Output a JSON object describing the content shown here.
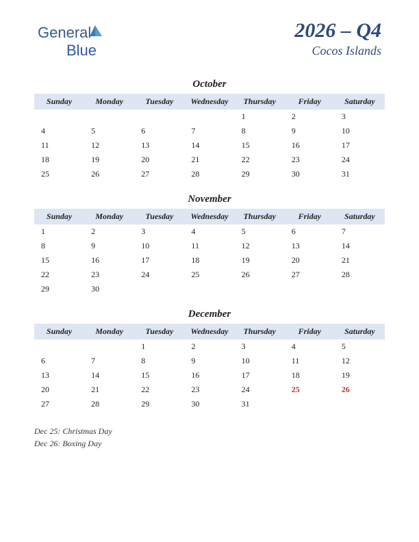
{
  "logo": {
    "part1": "General",
    "part2": "Blue"
  },
  "header": {
    "quarter": "2026 – Q4",
    "region": "Cocos Islands"
  },
  "colors": {
    "header_bg": "#dde6f2",
    "title_color": "#2d4a7a",
    "holiday_color": "#c03030",
    "text_color": "#222222"
  },
  "day_headers": [
    "Sunday",
    "Monday",
    "Tuesday",
    "Wednesday",
    "Thursday",
    "Friday",
    "Saturday"
  ],
  "months": [
    {
      "name": "October",
      "weeks": [
        [
          "",
          "",
          "",
          "",
          "1",
          "2",
          "3"
        ],
        [
          "4",
          "5",
          "6",
          "7",
          "8",
          "9",
          "10"
        ],
        [
          "11",
          "12",
          "13",
          "14",
          "15",
          "16",
          "17"
        ],
        [
          "18",
          "19",
          "20",
          "21",
          "22",
          "23",
          "24"
        ],
        [
          "25",
          "26",
          "27",
          "28",
          "29",
          "30",
          "31"
        ]
      ],
      "holidays": []
    },
    {
      "name": "November",
      "weeks": [
        [
          "1",
          "2",
          "3",
          "4",
          "5",
          "6",
          "7"
        ],
        [
          "8",
          "9",
          "10",
          "11",
          "12",
          "13",
          "14"
        ],
        [
          "15",
          "16",
          "17",
          "18",
          "19",
          "20",
          "21"
        ],
        [
          "22",
          "23",
          "24",
          "25",
          "26",
          "27",
          "28"
        ],
        [
          "29",
          "30",
          "",
          "",
          "",
          "",
          ""
        ]
      ],
      "holidays": []
    },
    {
      "name": "December",
      "weeks": [
        [
          "",
          "",
          "1",
          "2",
          "3",
          "4",
          "5"
        ],
        [
          "6",
          "7",
          "8",
          "9",
          "10",
          "11",
          "12"
        ],
        [
          "13",
          "14",
          "15",
          "16",
          "17",
          "18",
          "19"
        ],
        [
          "20",
          "21",
          "22",
          "23",
          "24",
          "25",
          "26"
        ],
        [
          "27",
          "28",
          "29",
          "30",
          "31",
          "",
          ""
        ]
      ],
      "holidays": [
        "25",
        "26"
      ]
    }
  ],
  "holiday_notes": [
    "Dec 25: Christmas Day",
    "Dec 26: Boxing Day"
  ]
}
